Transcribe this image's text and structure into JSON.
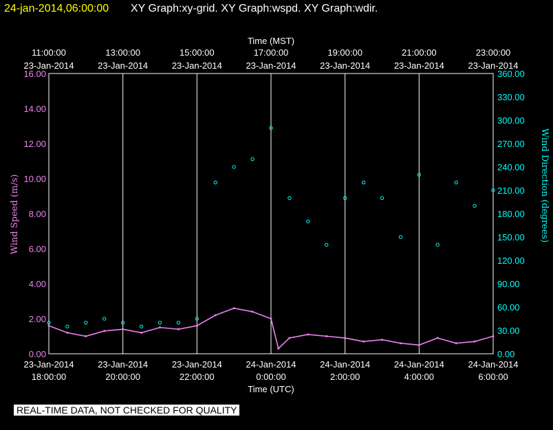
{
  "header": {
    "datetime": "24-jan-2014,06:00:00",
    "title": "XY Graph:xy-grid.  XY Graph:wspd.  XY Graph:wdir."
  },
  "disclaimer": "REAL-TIME DATA, NOT CHECKED FOR QUALITY",
  "colors": {
    "background": "#000000",
    "header_datetime": "#ffff00",
    "grid": "#ffffff",
    "wind_speed": "#ee82ee",
    "wind_direction": "#00ffff"
  },
  "chart_data": {
    "type": "scatter",
    "grid": true,
    "x_top": {
      "label": "Time (MST)",
      "ticks": [
        {
          "time": "11:00:00",
          "date": "23-Jan-2014"
        },
        {
          "time": "13:00:00",
          "date": "23-Jan-2014"
        },
        {
          "time": "15:00:00",
          "date": "23-Jan-2014"
        },
        {
          "time": "17:00:00",
          "date": "23-Jan-2014"
        },
        {
          "time": "19:00:00",
          "date": "23-Jan-2014"
        },
        {
          "time": "21:00:00",
          "date": "23-Jan-2014"
        },
        {
          "time": "23:00:00",
          "date": "23-Jan-2014"
        }
      ]
    },
    "x_bottom": {
      "label": "Time (UTC)",
      "range": [
        "2014-01-23 18:00",
        "2014-01-24 06:00"
      ],
      "ticks": [
        {
          "date": "23-Jan-2014",
          "time": "18:00:00"
        },
        {
          "date": "23-Jan-2014",
          "time": "20:00:00"
        },
        {
          "date": "23-Jan-2014",
          "time": "22:00:00"
        },
        {
          "date": "24-Jan-2014",
          "time": "0:00:00"
        },
        {
          "date": "24-Jan-2014",
          "time": "2:00:00"
        },
        {
          "date": "24-Jan-2014",
          "time": "4:00:00"
        },
        {
          "date": "24-Jan-2014",
          "time": "6:00:00"
        }
      ]
    },
    "y_left": {
      "label": "Wind Speed (m/s)",
      "range": [
        0,
        16
      ],
      "ticks": [
        "0.00",
        "2.00",
        "4.00",
        "6.00",
        "8.00",
        "10.00",
        "12.00",
        "14.00",
        "16.00"
      ]
    },
    "y_right": {
      "label": "Wind Direction (degrees)",
      "range": [
        0,
        360
      ],
      "ticks": [
        "0.00",
        "30.00",
        "60.00",
        "90.00",
        "120.00",
        "150.00",
        "180.00",
        "210.00",
        "240.00",
        "270.00",
        "300.00",
        "330.00",
        "360.00"
      ]
    },
    "series": [
      {
        "key": "wind_speed",
        "style": "line",
        "x_hours_utc": [
          18.0,
          18.5,
          19.0,
          19.5,
          20.0,
          20.5,
          21.0,
          21.5,
          22.0,
          22.5,
          23.0,
          23.5,
          24.0,
          24.2,
          24.5,
          25.0,
          25.5,
          26.0,
          26.5,
          27.0,
          27.5,
          28.0,
          28.5,
          29.0,
          29.5,
          30.0
        ],
        "values": [
          1.6,
          1.2,
          1.0,
          1.3,
          1.4,
          1.2,
          1.5,
          1.4,
          1.6,
          2.2,
          2.6,
          2.4,
          2.0,
          0.3,
          0.9,
          1.1,
          1.0,
          0.9,
          0.7,
          0.8,
          0.6,
          0.5,
          0.9,
          0.6,
          0.7,
          1.0
        ]
      },
      {
        "key": "wind_direction",
        "style": "markers",
        "x_hours_utc": [
          18.0,
          18.5,
          19.0,
          19.5,
          20.0,
          20.5,
          21.0,
          21.5,
          22.0,
          22.5,
          23.0,
          23.5,
          24.0,
          24.5,
          25.0,
          25.5,
          26.0,
          26.5,
          27.0,
          27.5,
          28.0,
          28.5,
          29.0,
          29.5,
          30.0
        ],
        "values": [
          40,
          35,
          40,
          45,
          40,
          35,
          40,
          40,
          45,
          220,
          240,
          250,
          290,
          200,
          170,
          140,
          200,
          220,
          200,
          150,
          230,
          140,
          220,
          190,
          210
        ]
      }
    ]
  }
}
